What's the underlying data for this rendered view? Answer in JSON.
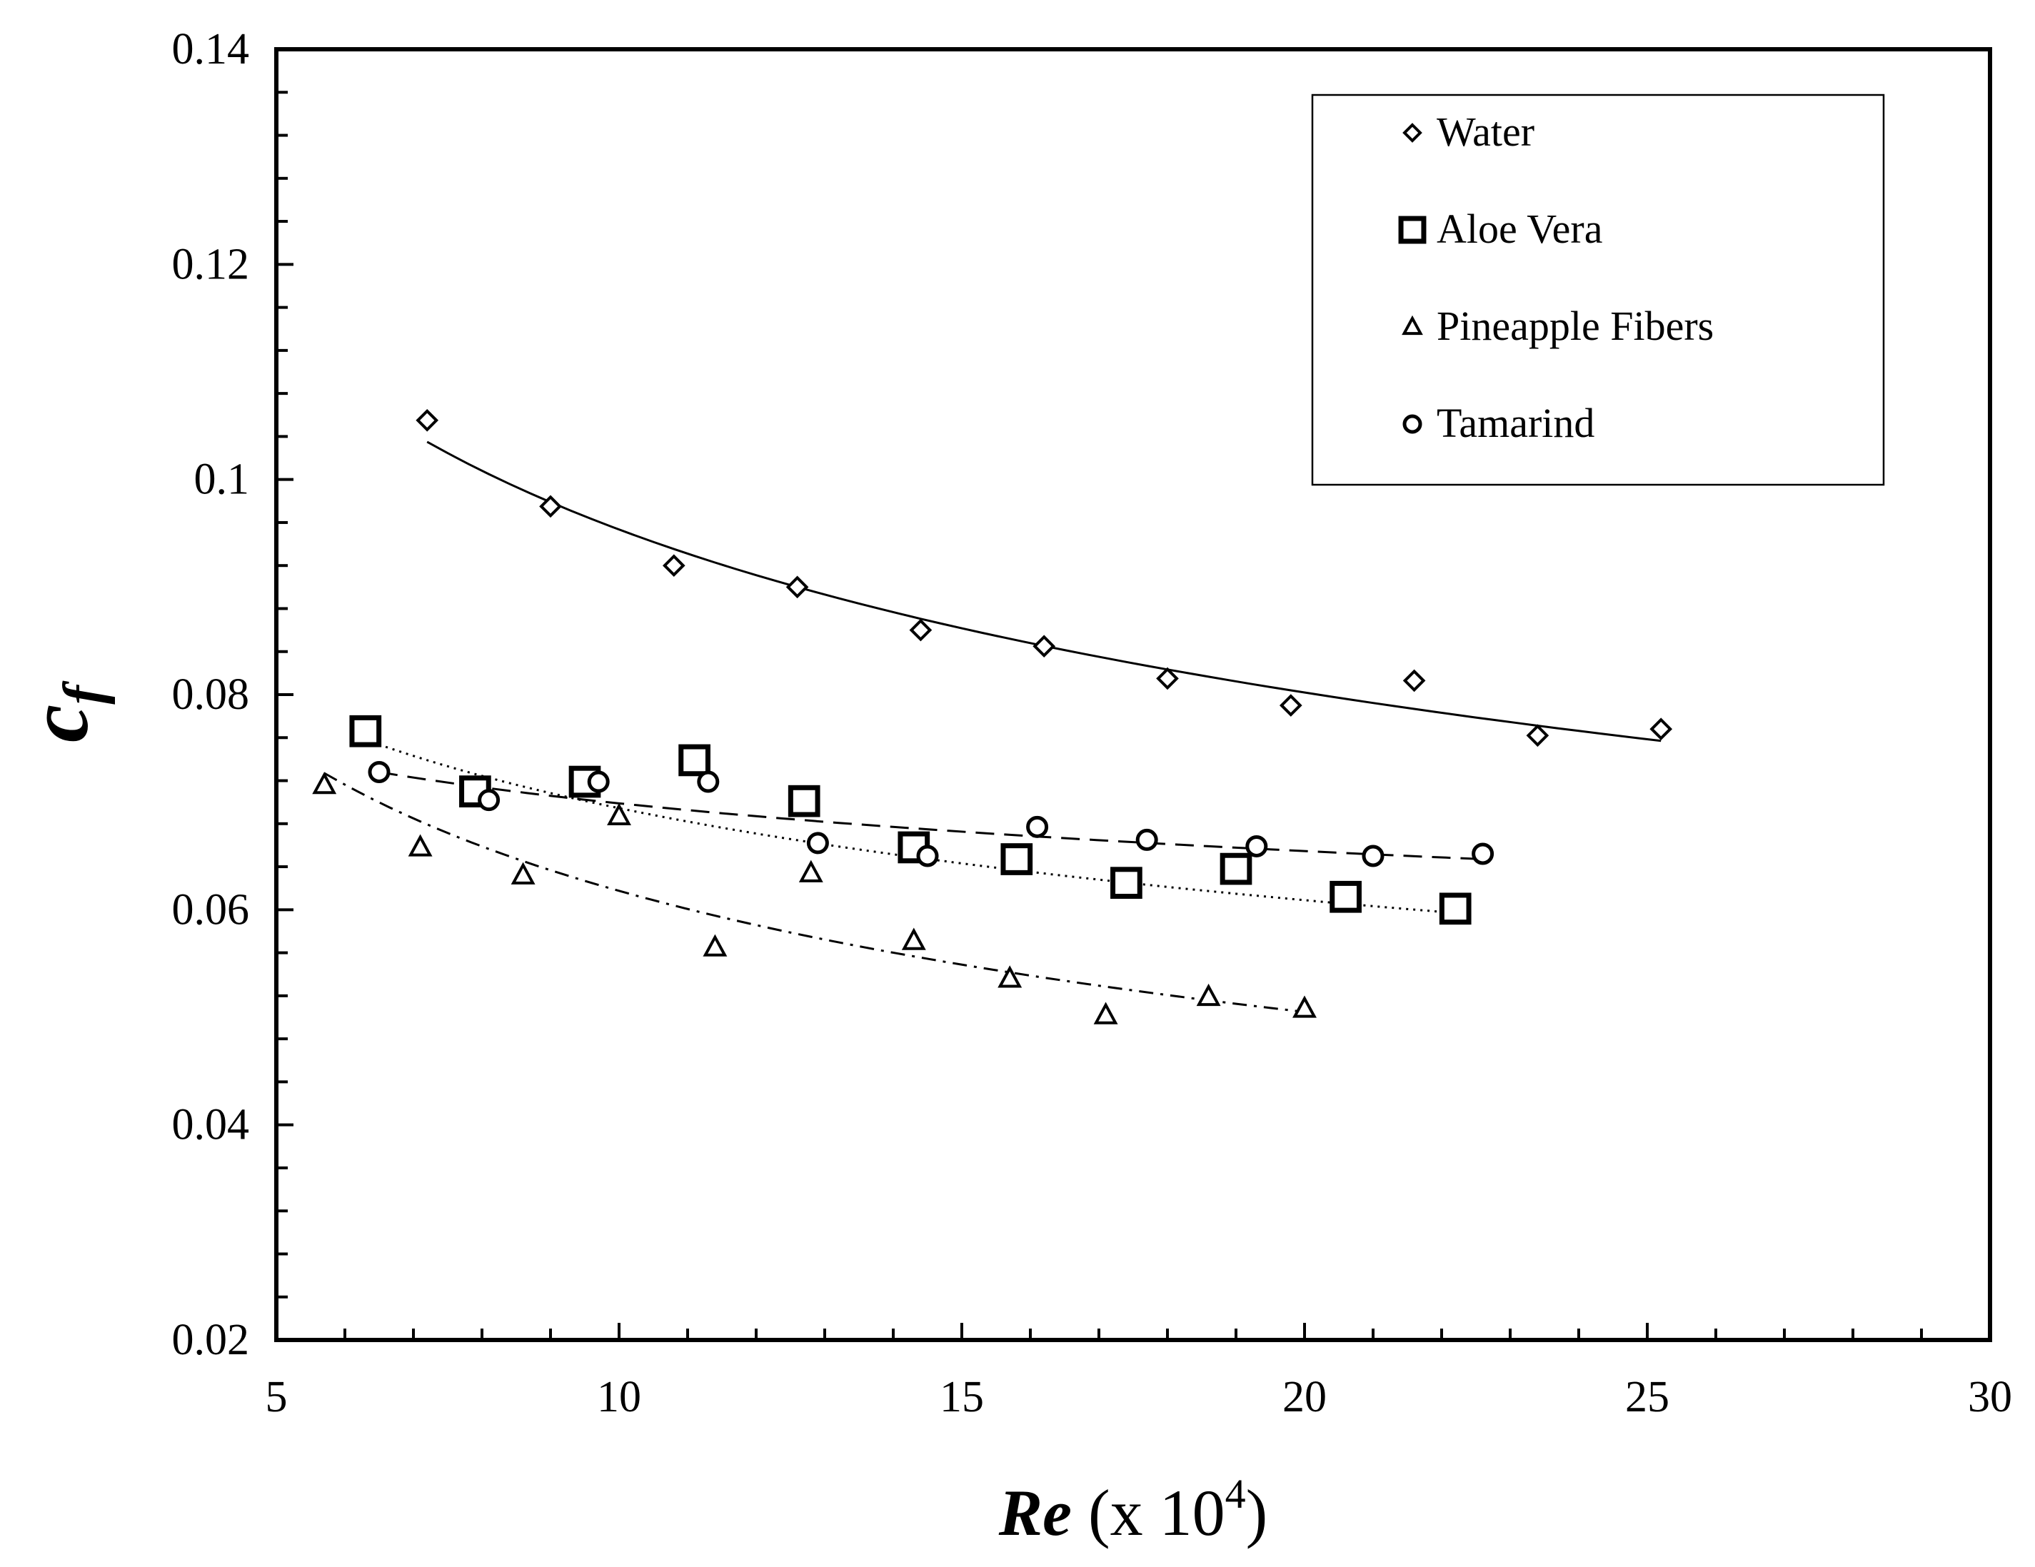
{
  "chart_data": {
    "type": "scatter",
    "title": "",
    "xlabel": {
      "main": "Re",
      "suffix": " (x 10",
      "exp": "4",
      "close": ")"
    },
    "ylabel": {
      "main": "c",
      "sub": "f"
    },
    "xlim": [
      5,
      30
    ],
    "ylim": [
      0.02,
      0.14
    ],
    "xticks": [
      5,
      10,
      15,
      20,
      25,
      30
    ],
    "xtick_labels": [
      "5",
      "10",
      "15",
      "20",
      "25",
      "30"
    ],
    "yticks": [
      0.02,
      0.04,
      0.06,
      0.08,
      0.1,
      0.12,
      0.14
    ],
    "ytick_labels": [
      "0.02",
      "0.04",
      "0.06",
      "0.08",
      "0.1",
      "0.12",
      "0.14"
    ],
    "legend_position": "top-right",
    "series": [
      {
        "name": "Water",
        "marker": "diamond",
        "line": "solid",
        "x": [
          7.2,
          9.0,
          10.8,
          12.6,
          14.4,
          16.2,
          18.0,
          19.8,
          21.6,
          23.4,
          25.2
        ],
        "y": [
          0.1055,
          0.0975,
          0.092,
          0.09,
          0.086,
          0.0845,
          0.0815,
          0.079,
          0.0813,
          0.0762,
          0.0768
        ],
        "fit_x": [
          7.2,
          25.2
        ],
        "fit_y": [
          0.1035,
          0.0757
        ]
      },
      {
        "name": "Aloe Vera",
        "marker": "square",
        "line": "dotted",
        "x": [
          6.3,
          7.9,
          9.5,
          11.1,
          12.7,
          14.3,
          15.8,
          17.4,
          19.0,
          20.6,
          22.2
        ],
        "y": [
          0.0766,
          0.071,
          0.0719,
          0.0739,
          0.0701,
          0.0658,
          0.0647,
          0.0625,
          0.0638,
          0.0612,
          0.0601
        ],
        "fit_x": [
          6.3,
          22.2
        ],
        "fit_y": [
          0.0758,
          0.0597
        ]
      },
      {
        "name": "Pineapple Fibers",
        "marker": "triangle",
        "line": "dash-dot",
        "x": [
          5.7,
          7.1,
          8.6,
          10.0,
          11.4,
          12.8,
          14.3,
          15.7,
          17.1,
          18.6,
          20.0
        ],
        "y": [
          0.0716,
          0.0658,
          0.0632,
          0.0687,
          0.0565,
          0.0634,
          0.0571,
          0.0536,
          0.0502,
          0.0519,
          0.0508
        ],
        "fit_x": [
          5.7,
          20.0
        ],
        "fit_y": [
          0.0727,
          0.0505
        ]
      },
      {
        "name": "Tamarind",
        "marker": "circle",
        "line": "dashed",
        "x": [
          6.5,
          8.1,
          9.7,
          11.3,
          12.9,
          14.5,
          16.1,
          17.7,
          19.3,
          21.0,
          22.6
        ],
        "y": [
          0.0728,
          0.0702,
          0.0719,
          0.0719,
          0.0662,
          0.065,
          0.0677,
          0.0665,
          0.0659,
          0.065,
          0.0652
        ],
        "fit_x": [
          6.5,
          22.6
        ],
        "fit_y": [
          0.0728,
          0.0647
        ]
      }
    ]
  }
}
